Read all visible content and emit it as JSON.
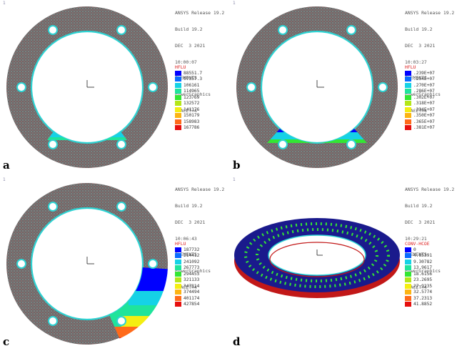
{
  "colors": {
    "legend": [
      "#0000ff",
      "#0a6cff",
      "#15d2e6",
      "#1fe49b",
      "#33e633",
      "#b4e619",
      "#f4ee12",
      "#fcb414",
      "#ff6a1a",
      "#e60f0f"
    ]
  },
  "panels": [
    {
      "label": "a",
      "window_number": "1",
      "info": [
        "ANSYS Release 19.2",
        "Build 19.2",
        "DEC  3 2021",
        "10:00:07",
        "ELEMENTS",
        "PowerGraphics",
        "EFACET=4"
      ],
      "legend_title": "HFLU",
      "legend_values": [
        "88551.7",
        "97357.3",
        "106161",
        "114965",
        "123769",
        "132572",
        "141376",
        "150179",
        "158983",
        "167786"
      ]
    },
    {
      "label": "b",
      "window_number": "1",
      "info": [
        "ANSYS Release 19.2",
        "Build 19.2",
        "DEC  3 2021",
        "10:03:27",
        "ELEMENTS",
        "PowerGraphics",
        "EFACET=4"
      ],
      "legend_title": "HFLU",
      "legend_values": [
        ".239E+07",
        ".254E+07",
        ".270E+07",
        ".286E+07",
        ".302E+07",
        ".318E+07",
        ".334E+07",
        ".350E+07",
        ".365E+07",
        ".381E+07"
      ]
    },
    {
      "label": "c",
      "window_number": "1",
      "info": [
        "ANSYS Release 19.2",
        "Build 19.2",
        "DEC  3 2021",
        "10:06:43",
        "ELEMENTS",
        "PowerGraphics",
        "EFACET=4"
      ],
      "legend_title": "HFLU",
      "legend_values": [
        "187732",
        "214412",
        "241092",
        "267773",
        "294453",
        "321133",
        "347814",
        "374494",
        "401174",
        "427854"
      ]
    },
    {
      "label": "d",
      "window_number": "1",
      "info": [
        "ANSYS Release 19.2",
        "Build 19.2",
        "DEC  3 2021",
        "10:29:21",
        "ELEMENTS",
        "PowerGraphics",
        "EFACET=4"
      ],
      "legend_title": "CONV-HCOE",
      "legend_values": [
        "0",
        "4.65391",
        "9.30782",
        "13.9617",
        "18.6156",
        "23.2695",
        "27.9235",
        "32.5774",
        "37.2313",
        "41.8852"
      ]
    }
  ]
}
